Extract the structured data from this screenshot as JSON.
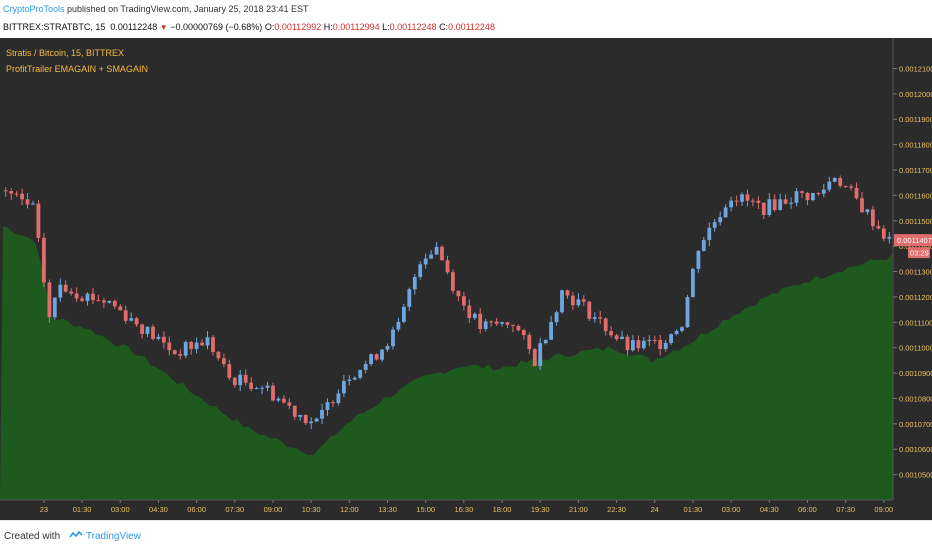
{
  "header": {
    "author": "CryptoProTools",
    "published_text": " published on TradingView.com, January 25, 2018 23:41 EST",
    "symbol": "BITTREX:STRATBTC, 15",
    "last": "0.00112248",
    "change": "−0.00000769 (−0.68%)",
    "o_label": "O:",
    "o_value": "0.00112992",
    "h_label": "H:",
    "h_value": "0.00112994",
    "l_label": "L:",
    "l_value": "0.00112248",
    "c_label": "C:",
    "c_value": "0.00112248"
  },
  "chart": {
    "title": "Stratis / Bitcoin, 15, BITTREX",
    "indicator": "ProfitTrailer EMAGAIN + SMAGAIN",
    "price_label": "0.00114077",
    "timer_label": "03:29",
    "colors": {
      "background": "#2b2b2b",
      "up": "#6ea6e0",
      "down": "#e06c6c",
      "area": "#1e5a1e",
      "axis_text": "#e8c060",
      "price_tag": "#e06c6c"
    }
  },
  "footer": {
    "created_with": "Created with",
    "brand": "TradingView"
  },
  "chart_data": {
    "type": "candlestick",
    "y_ticks": [
      0.00121,
      0.0012,
      0.00119,
      0.00118,
      0.00117,
      0.00116,
      0.00115,
      0.00114,
      0.00113,
      0.00112,
      0.00111,
      0.0011,
      0.00109,
      0.00108,
      0.00107,
      0.00106,
      0.00105
    ],
    "y_tick_labels": [
      "0.00121000",
      "0.00120000",
      "0.00119000",
      "0.00118000",
      "0.00117000",
      "0.00116000",
      "0.00115000",
      "0.00114000",
      "0.00113000",
      "0.00112000",
      "0.00111000",
      "0.00110000",
      "0.00109000",
      "0.00108000",
      "0.00107000",
      "0.00106000",
      "0.00105000"
    ],
    "ylim": [
      0.00104,
      0.001222
    ],
    "x_tick_labels": [
      "23",
      "01:30",
      "03:00",
      "04:30",
      "06:00",
      "07:30",
      "09:00",
      "10:30",
      "12:00",
      "13:30",
      "15:00",
      "16:30",
      "18:00",
      "19:30",
      "21:00",
      "22:30",
      "24",
      "01:30",
      "03:00",
      "04:30",
      "06:00",
      "07:30",
      "09:00"
    ],
    "x_tick_bars": [
      7,
      14,
      21,
      28,
      35,
      42,
      49,
      56,
      63,
      70,
      77,
      84,
      91,
      98,
      105,
      112,
      119,
      126,
      133,
      140,
      147,
      154,
      161
    ],
    "bars": 163,
    "close_anchors": [
      [
        0,
        0.001162
      ],
      [
        6,
        0.001155
      ],
      [
        9,
        0.001112
      ],
      [
        11,
        0.001125
      ],
      [
        15,
        0.001121
      ],
      [
        20,
        0.001118
      ],
      [
        26,
        0.001108
      ],
      [
        32,
        0.001098
      ],
      [
        38,
        0.001103
      ],
      [
        42,
        0.001088
      ],
      [
        48,
        0.001085
      ],
      [
        54,
        0.001075
      ],
      [
        58,
        0.00107
      ],
      [
        63,
        0.001088
      ],
      [
        68,
        0.001095
      ],
      [
        73,
        0.001108
      ],
      [
        77,
        0.001135
      ],
      [
        80,
        0.00114
      ],
      [
        84,
        0.00112
      ],
      [
        88,
        0.001108
      ],
      [
        94,
        0.00111
      ],
      [
        98,
        0.001095
      ],
      [
        103,
        0.001122
      ],
      [
        106,
        0.001118
      ],
      [
        110,
        0.00111
      ],
      [
        115,
        0.0011
      ],
      [
        121,
        0.001102
      ],
      [
        125,
        0.00111
      ],
      [
        128,
        0.00114
      ],
      [
        134,
        0.00116
      ],
      [
        140,
        0.001155
      ],
      [
        146,
        0.00116
      ],
      [
        150,
        0.00116
      ],
      [
        153,
        0.001168
      ],
      [
        157,
        0.001158
      ],
      [
        163,
        0.001142
      ]
    ],
    "area_anchors": [
      [
        0,
        0.001148
      ],
      [
        6,
        0.001142
      ],
      [
        9,
        0.001112
      ],
      [
        15,
        0.001108
      ],
      [
        25,
        0.001097
      ],
      [
        35,
        0.001082
      ],
      [
        45,
        0.001068
      ],
      [
        52,
        0.001062
      ],
      [
        57,
        0.001058
      ],
      [
        63,
        0.00107
      ],
      [
        70,
        0.00108
      ],
      [
        77,
        0.001088
      ],
      [
        84,
        0.001093
      ],
      [
        91,
        0.001092
      ],
      [
        98,
        0.001095
      ],
      [
        105,
        0.001098
      ],
      [
        112,
        0.0011
      ],
      [
        119,
        0.001095
      ],
      [
        126,
        0.001102
      ],
      [
        133,
        0.001112
      ],
      [
        140,
        0.00112
      ],
      [
        147,
        0.001126
      ],
      [
        154,
        0.001131
      ],
      [
        163,
        0.001136
      ]
    ]
  }
}
